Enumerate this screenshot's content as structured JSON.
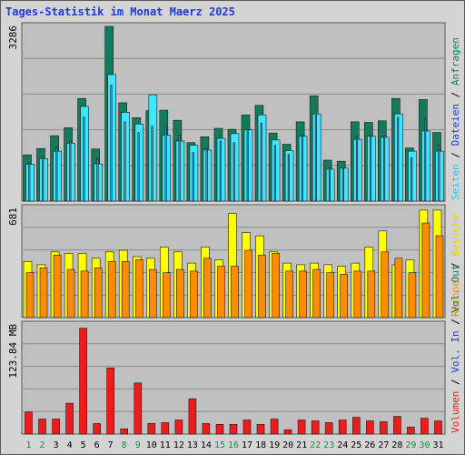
{
  "title": "Tages-Statistik im Monat Maerz 2025",
  "colors": {
    "plot_bg": "#c0c0c0",
    "grid": "#8c8c8c",
    "anfragen": "#137b5c",
    "dateien": "#2aa9d6",
    "seiten": "#3fe6ff",
    "besuche": "#ffff00",
    "rechner": "#ff8c00",
    "volumen": "#ee1c1c",
    "day_weekday": "#000000",
    "day_weekend": "#1f8b4c"
  },
  "chart_data": [
    {
      "type": "bar",
      "panel": "hits",
      "ymax_label": "3286",
      "ylim": [
        0,
        3286
      ],
      "grid": true,
      "categories": [
        "1",
        "2",
        "3",
        "4",
        "5",
        "6",
        "7",
        "8",
        "9",
        "10",
        "11",
        "12",
        "13",
        "14",
        "15",
        "16",
        "17",
        "18",
        "19",
        "20",
        "21",
        "22",
        "23",
        "24",
        "25",
        "26",
        "27",
        "28",
        "29",
        "30",
        "31"
      ],
      "weekend_days": [
        "1",
        "2",
        "8",
        "9",
        "15",
        "16",
        "22",
        "23",
        "29",
        "30"
      ],
      "series": [
        {
          "name": "Anfragen",
          "values": [
            870,
            990,
            1230,
            1380,
            1930,
            980,
            3286,
            1850,
            1570,
            1700,
            1710,
            1520,
            1100,
            1210,
            1370,
            1350,
            1620,
            1800,
            1280,
            1070,
            1490,
            1980,
            770,
            750,
            1490,
            1480,
            1510,
            1930,
            1000,
            1910,
            1290
          ]
        },
        {
          "name": "Dateien",
          "values": [
            720,
            830,
            1010,
            1120,
            1580,
            800,
            2180,
            1490,
            1290,
            1410,
            1420,
            1240,
            910,
            990,
            1130,
            1100,
            1340,
            1470,
            1050,
            880,
            1220,
            1620,
            630,
            610,
            1220,
            1220,
            1230,
            1580,
            820,
            1560,
            1060
          ]
        },
        {
          "name": "Seiten",
          "values": [
            690,
            800,
            940,
            1090,
            1780,
            700,
            2380,
            1670,
            1450,
            2000,
            1240,
            1130,
            1050,
            960,
            1180,
            1270,
            1340,
            1620,
            1150,
            950,
            1220,
            1640,
            600,
            620,
            1160,
            1220,
            1200,
            1640,
            940,
            1320,
            940
          ]
        }
      ],
      "axis_labels": [
        "Anfragen",
        "Dateien",
        "Seiten"
      ]
    },
    {
      "type": "bar",
      "panel": "visits",
      "ymax_label": "681",
      "ylim": [
        0,
        681
      ],
      "grid": true,
      "categories": [
        "1",
        "2",
        "3",
        "4",
        "5",
        "6",
        "7",
        "8",
        "9",
        "10",
        "11",
        "12",
        "13",
        "14",
        "15",
        "16",
        "17",
        "18",
        "19",
        "20",
        "21",
        "22",
        "23",
        "24",
        "25",
        "26",
        "27",
        "28",
        "29",
        "30",
        "31"
      ],
      "series": [
        {
          "name": "Besuche",
          "values": [
            350,
            330,
            410,
            400,
            400,
            370,
            410,
            420,
            380,
            370,
            440,
            410,
            340,
            440,
            360,
            650,
            530,
            510,
            410,
            340,
            330,
            340,
            330,
            320,
            340,
            440,
            540,
            330,
            360,
            670,
            670
          ]
        },
        {
          "name": "Rechner",
          "values": [
            280,
            310,
            390,
            300,
            290,
            310,
            350,
            350,
            360,
            300,
            280,
            300,
            290,
            370,
            320,
            320,
            420,
            390,
            400,
            290,
            290,
            300,
            280,
            270,
            290,
            290,
            410,
            370,
            280,
            590,
            510
          ]
        },
        {
          "name": "Besuche_inner",
          "values": [
            340,
            300,
            380,
            300,
            360,
            300,
            380,
            360,
            330,
            320,
            400,
            370,
            300,
            410,
            340,
            380,
            470,
            460,
            420,
            320,
            300,
            310,
            290,
            280,
            300,
            330,
            520,
            340,
            320,
            620,
            600
          ]
        }
      ],
      "axis_labels": [
        "Besuche",
        "Rechner"
      ]
    },
    {
      "type": "bar",
      "panel": "volume",
      "ymax_label": "123.84 MB",
      "ylim": [
        0,
        123.84
      ],
      "grid": true,
      "categories": [
        "1",
        "2",
        "3",
        "4",
        "5",
        "6",
        "7",
        "8",
        "9",
        "10",
        "11",
        "12",
        "13",
        "14",
        "15",
        "16",
        "17",
        "18",
        "19",
        "20",
        "21",
        "22",
        "23",
        "24",
        "25",
        "26",
        "27",
        "28",
        "29",
        "30",
        "31"
      ],
      "series": [
        {
          "name": "Volumen",
          "values": [
            25,
            17,
            17,
            35,
            120,
            12,
            75,
            6,
            58,
            12,
            13,
            16,
            40,
            12,
            11,
            11,
            16,
            11,
            17,
            5,
            16,
            15,
            13,
            16,
            19,
            15,
            14,
            20,
            8,
            18,
            15
          ]
        }
      ],
      "axis_labels": [
        "Volumen",
        "Vol. In",
        "Vol. Out"
      ]
    }
  ]
}
